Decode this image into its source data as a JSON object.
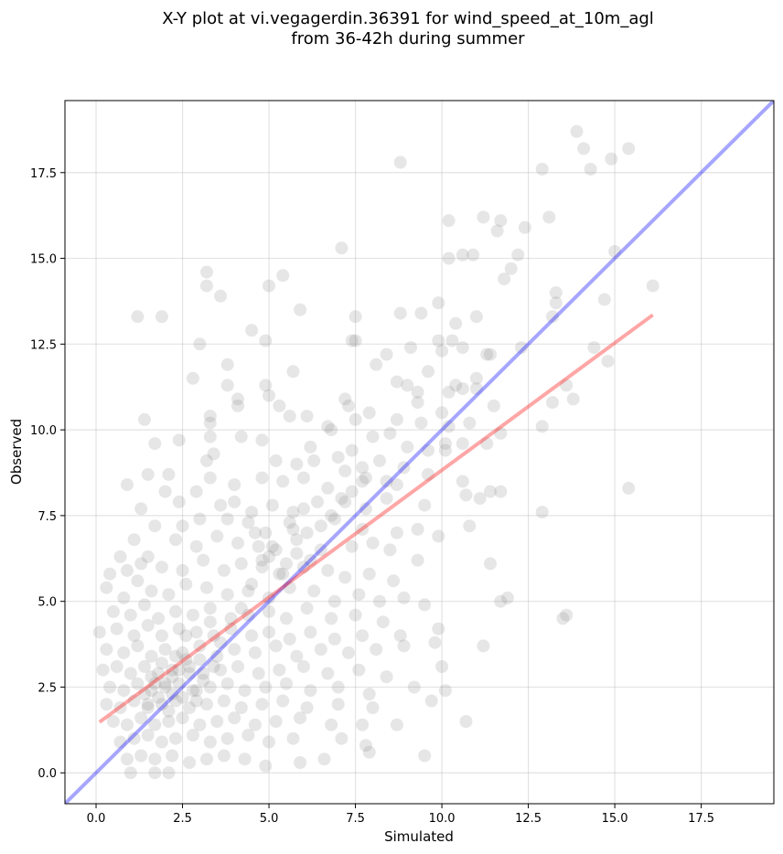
{
  "chart_data": {
    "type": "scatter",
    "title_line1": "X-Y plot at vi.vegagerdin.36391 for wind_speed_at_10m_agl",
    "title_line2": "from 36-42h during summer",
    "xlabel": "Simulated",
    "ylabel": "Observed",
    "xlim": [
      -0.9,
      19.6
    ],
    "ylim": [
      -0.9,
      19.6
    ],
    "xticks": [
      0.0,
      2.5,
      5.0,
      7.5,
      10.0,
      12.5,
      15.0,
      17.5
    ],
    "yticks": [
      0.0,
      2.5,
      5.0,
      7.5,
      10.0,
      12.5,
      15.0,
      17.5
    ],
    "xtick_labels": [
      "0.0",
      "2.5",
      "5.0",
      "7.5",
      "10.0",
      "12.5",
      "15.0",
      "17.5"
    ],
    "ytick_labels": [
      "0.0",
      "2.5",
      "5.0",
      "7.5",
      "10.0",
      "12.5",
      "15.0",
      "17.5"
    ],
    "grid": true,
    "point_color": "#808080",
    "identity_line": {
      "color": "#0000ff",
      "x": [
        -0.9,
        19.6
      ],
      "y": [
        -0.9,
        19.6
      ]
    },
    "fit_line": {
      "color": "#ff0000",
      "x": [
        0.1,
        16.1
      ],
      "y": [
        1.48,
        13.35
      ]
    },
    "points": [
      [
        13.9,
        18.7
      ],
      [
        14.1,
        18.2
      ],
      [
        15.4,
        18.2
      ],
      [
        14.9,
        17.9
      ],
      [
        12.9,
        17.6
      ],
      [
        14.3,
        17.6
      ],
      [
        8.8,
        17.8
      ],
      [
        13.1,
        16.2
      ],
      [
        12.4,
        15.9
      ],
      [
        11.7,
        16.1
      ],
      [
        11.6,
        15.8
      ],
      [
        10.2,
        16.1
      ],
      [
        11.2,
        16.2
      ],
      [
        12.2,
        15.1
      ],
      [
        10.6,
        15.1
      ],
      [
        10.9,
        15.1
      ],
      [
        7.1,
        15.3
      ],
      [
        10.2,
        15.0
      ],
      [
        12.0,
        14.7
      ],
      [
        15.0,
        15.2
      ],
      [
        11.8,
        14.4
      ],
      [
        3.2,
        14.6
      ],
      [
        5.4,
        14.5
      ],
      [
        5.0,
        14.2
      ],
      [
        3.2,
        14.2
      ],
      [
        14.7,
        13.8
      ],
      [
        16.1,
        14.2
      ],
      [
        3.6,
        13.9
      ],
      [
        13.3,
        13.7
      ],
      [
        13.3,
        14.0
      ],
      [
        1.2,
        13.3
      ],
      [
        1.9,
        13.3
      ],
      [
        5.9,
        13.5
      ],
      [
        7.5,
        13.3
      ],
      [
        9.4,
        13.4
      ],
      [
        8.8,
        13.4
      ],
      [
        9.9,
        13.7
      ],
      [
        10.4,
        13.1
      ],
      [
        11.0,
        13.3
      ],
      [
        13.2,
        13.3
      ],
      [
        4.5,
        12.9
      ],
      [
        4.9,
        12.6
      ],
      [
        7.4,
        12.6
      ],
      [
        7.5,
        12.6
      ],
      [
        3.0,
        12.5
      ],
      [
        9.1,
        12.4
      ],
      [
        9.9,
        12.6
      ],
      [
        10.3,
        12.6
      ],
      [
        10.6,
        12.4
      ],
      [
        11.3,
        12.2
      ],
      [
        11.4,
        12.2
      ],
      [
        12.3,
        12.4
      ],
      [
        14.4,
        12.4
      ],
      [
        8.4,
        12.2
      ],
      [
        10.0,
        12.3
      ],
      [
        8.1,
        11.9
      ],
      [
        3.8,
        11.9
      ],
      [
        5.7,
        11.7
      ],
      [
        9.6,
        11.7
      ],
      [
        10.4,
        11.3
      ],
      [
        10.2,
        11.1
      ],
      [
        11.0,
        11.5
      ],
      [
        13.6,
        11.3
      ],
      [
        14.8,
        12.0
      ],
      [
        2.8,
        11.5
      ],
      [
        4.9,
        11.3
      ],
      [
        3.8,
        11.3
      ],
      [
        9.3,
        11.1
      ],
      [
        9.0,
        11.3
      ],
      [
        8.7,
        11.4
      ],
      [
        5.0,
        11.0
      ],
      [
        7.2,
        10.9
      ],
      [
        7.3,
        10.7
      ],
      [
        9.3,
        10.8
      ],
      [
        10.6,
        11.2
      ],
      [
        11.0,
        11.2
      ],
      [
        11.5,
        10.7
      ],
      [
        13.2,
        10.8
      ],
      [
        13.8,
        10.9
      ],
      [
        4.1,
        10.9
      ],
      [
        4.1,
        10.7
      ],
      [
        5.3,
        10.7
      ],
      [
        6.1,
        10.4
      ],
      [
        6.7,
        10.1
      ],
      [
        7.5,
        10.3
      ],
      [
        7.9,
        10.5
      ],
      [
        1.4,
        10.3
      ],
      [
        3.3,
        10.4
      ],
      [
        3.3,
        10.2
      ],
      [
        5.6,
        10.4
      ],
      [
        6.8,
        10.0
      ],
      [
        8.7,
        10.3
      ],
      [
        9.4,
        10.2
      ],
      [
        10.8,
        10.2
      ],
      [
        11.7,
        9.9
      ],
      [
        12.9,
        10.1
      ],
      [
        10.0,
        10.5
      ],
      [
        10.2,
        10.1
      ],
      [
        3.3,
        9.8
      ],
      [
        4.8,
        9.7
      ],
      [
        8.0,
        9.8
      ],
      [
        8.5,
        9.9
      ],
      [
        10.1,
        9.6
      ],
      [
        10.6,
        9.6
      ],
      [
        11.3,
        9.6
      ],
      [
        1.7,
        9.6
      ],
      [
        2.4,
        9.7
      ],
      [
        3.4,
        9.3
      ],
      [
        4.2,
        9.8
      ],
      [
        6.2,
        9.5
      ],
      [
        7.4,
        9.4
      ],
      [
        9.0,
        9.5
      ],
      [
        9.6,
        9.4
      ],
      [
        10.1,
        9.4
      ],
      [
        3.2,
        9.1
      ],
      [
        5.2,
        9.1
      ],
      [
        5.8,
        9.0
      ],
      [
        6.3,
        9.1
      ],
      [
        7.0,
        9.2
      ],
      [
        7.7,
        8.9
      ],
      [
        8.2,
        9.1
      ],
      [
        8.9,
        8.9
      ],
      [
        0.9,
        8.4
      ],
      [
        1.5,
        8.7
      ],
      [
        2.1,
        8.7
      ],
      [
        2.9,
        8.2
      ],
      [
        3.3,
        8.6
      ],
      [
        4.0,
        8.4
      ],
      [
        4.8,
        8.6
      ],
      [
        5.4,
        8.5
      ],
      [
        6.0,
        8.6
      ],
      [
        6.7,
        8.3
      ],
      [
        7.2,
        8.8
      ],
      [
        7.8,
        8.6
      ],
      [
        8.4,
        8.5
      ],
      [
        8.7,
        8.4
      ],
      [
        9.6,
        8.7
      ],
      [
        10.6,
        8.5
      ],
      [
        11.4,
        8.2
      ],
      [
        11.7,
        8.2
      ],
      [
        10.7,
        8.1
      ],
      [
        2.0,
        8.2
      ],
      [
        2.4,
        7.9
      ],
      [
        3.6,
        7.8
      ],
      [
        4.0,
        7.9
      ],
      [
        4.5,
        7.6
      ],
      [
        5.1,
        7.8
      ],
      [
        5.7,
        7.6
      ],
      [
        6.4,
        7.9
      ],
      [
        7.2,
        7.9
      ],
      [
        7.8,
        7.7
      ],
      [
        8.4,
        8.0
      ],
      [
        9.5,
        7.8
      ],
      [
        11.1,
        8.0
      ],
      [
        12.9,
        7.6
      ],
      [
        15.4,
        8.3
      ],
      [
        1.3,
        7.7
      ],
      [
        1.7,
        7.2
      ],
      [
        2.5,
        7.2
      ],
      [
        3.0,
        7.4
      ],
      [
        3.8,
        7.4
      ],
      [
        4.4,
        7.3
      ],
      [
        4.9,
        7.0
      ],
      [
        5.6,
        7.3
      ],
      [
        6.1,
        7.0
      ],
      [
        6.9,
        7.4
      ],
      [
        7.7,
        7.1
      ],
      [
        8.7,
        7.0
      ],
      [
        9.3,
        7.1
      ],
      [
        9.9,
        6.9
      ],
      [
        10.8,
        7.2
      ],
      [
        0.7,
        6.3
      ],
      [
        1.1,
        6.8
      ],
      [
        1.5,
        6.3
      ],
      [
        2.3,
        6.8
      ],
      [
        2.9,
        6.6
      ],
      [
        3.5,
        6.9
      ],
      [
        4.1,
        6.7
      ],
      [
        4.7,
        6.6
      ],
      [
        5.2,
        6.5
      ],
      [
        5.8,
        6.8
      ],
      [
        6.5,
        6.5
      ],
      [
        7.4,
        6.6
      ],
      [
        8.0,
        6.7
      ],
      [
        8.5,
        6.5
      ],
      [
        9.3,
        6.2
      ],
      [
        11.4,
        6.1
      ],
      [
        0.4,
        5.8
      ],
      [
        0.9,
        5.9
      ],
      [
        1.3,
        6.1
      ],
      [
        1.9,
        6.0
      ],
      [
        2.5,
        5.9
      ],
      [
        3.1,
        6.2
      ],
      [
        3.7,
        5.9
      ],
      [
        4.2,
        6.1
      ],
      [
        4.8,
        6.0
      ],
      [
        5.4,
        5.8
      ],
      [
        6.0,
        6.0
      ],
      [
        6.7,
        5.9
      ],
      [
        7.2,
        5.7
      ],
      [
        7.9,
        5.8
      ],
      [
        8.6,
        5.6
      ],
      [
        0.3,
        5.4
      ],
      [
        0.8,
        5.1
      ],
      [
        1.2,
        5.6
      ],
      [
        1.6,
        5.3
      ],
      [
        2.1,
        5.2
      ],
      [
        2.6,
        5.5
      ],
      [
        3.2,
        5.4
      ],
      [
        3.8,
        5.2
      ],
      [
        4.4,
        5.3
      ],
      [
        5.0,
        5.1
      ],
      [
        5.6,
        5.4
      ],
      [
        6.3,
        5.3
      ],
      [
        6.9,
        5.0
      ],
      [
        7.6,
        5.2
      ],
      [
        8.2,
        5.0
      ],
      [
        8.9,
        5.1
      ],
      [
        9.5,
        4.9
      ],
      [
        11.9,
        5.1
      ],
      [
        11.7,
        5.0
      ],
      [
        0.5,
        4.7
      ],
      [
        1.0,
        4.6
      ],
      [
        1.4,
        4.9
      ],
      [
        1.8,
        4.5
      ],
      [
        2.3,
        4.7
      ],
      [
        2.8,
        4.6
      ],
      [
        3.3,
        4.8
      ],
      [
        3.9,
        4.5
      ],
      [
        4.4,
        4.6
      ],
      [
        5.0,
        4.7
      ],
      [
        5.5,
        4.5
      ],
      [
        6.1,
        4.8
      ],
      [
        6.8,
        4.5
      ],
      [
        7.5,
        4.6
      ],
      [
        8.3,
        4.4
      ],
      [
        13.5,
        4.5
      ],
      [
        13.6,
        4.6
      ],
      [
        0.1,
        4.1
      ],
      [
        0.6,
        4.2
      ],
      [
        1.1,
        4.0
      ],
      [
        1.5,
        4.3
      ],
      [
        1.9,
        4.0
      ],
      [
        2.4,
        4.2
      ],
      [
        2.9,
        4.1
      ],
      [
        3.4,
        4.0
      ],
      [
        3.9,
        4.2
      ],
      [
        4.5,
        4.0
      ],
      [
        5.0,
        4.1
      ],
      [
        5.6,
        3.9
      ],
      [
        6.2,
        4.1
      ],
      [
        6.9,
        3.9
      ],
      [
        7.7,
        4.0
      ],
      [
        8.8,
        4.0
      ],
      [
        9.9,
        4.2
      ],
      [
        0.3,
        3.6
      ],
      [
        0.8,
        3.5
      ],
      [
        1.2,
        3.7
      ],
      [
        1.6,
        3.4
      ],
      [
        2.0,
        3.6
      ],
      [
        2.5,
        3.5
      ],
      [
        3.0,
        3.7
      ],
      [
        3.5,
        3.4
      ],
      [
        4.0,
        3.6
      ],
      [
        4.6,
        3.5
      ],
      [
        5.2,
        3.7
      ],
      [
        5.8,
        3.4
      ],
      [
        6.5,
        3.6
      ],
      [
        7.3,
        3.5
      ],
      [
        8.1,
        3.6
      ],
      [
        8.9,
        3.7
      ],
      [
        9.8,
        3.8
      ],
      [
        11.2,
        3.7
      ],
      [
        0.2,
        3.0
      ],
      [
        0.6,
        3.1
      ],
      [
        1.0,
        2.9
      ],
      [
        1.4,
        3.1
      ],
      [
        1.8,
        2.9
      ],
      [
        2.2,
        3.0
      ],
      [
        2.7,
        3.1
      ],
      [
        3.1,
        2.9
      ],
      [
        3.6,
        3.0
      ],
      [
        4.1,
        3.1
      ],
      [
        4.7,
        2.9
      ],
      [
        5.3,
        3.0
      ],
      [
        6.0,
        3.1
      ],
      [
        6.7,
        2.9
      ],
      [
        7.6,
        3.0
      ],
      [
        8.4,
        2.8
      ],
      [
        10.0,
        3.1
      ],
      [
        0.4,
        2.5
      ],
      [
        0.8,
        2.4
      ],
      [
        1.2,
        2.6
      ],
      [
        1.6,
        2.4
      ],
      [
        2.0,
        2.5
      ],
      [
        2.4,
        2.6
      ],
      [
        2.9,
        2.4
      ],
      [
        3.3,
        2.5
      ],
      [
        3.8,
        2.6
      ],
      [
        4.3,
        2.4
      ],
      [
        4.9,
        2.5
      ],
      [
        5.5,
        2.6
      ],
      [
        6.2,
        2.4
      ],
      [
        7.0,
        2.5
      ],
      [
        7.9,
        2.3
      ],
      [
        9.2,
        2.5
      ],
      [
        10.1,
        2.4
      ],
      [
        0.3,
        2.0
      ],
      [
        0.7,
        1.9
      ],
      [
        1.1,
        2.1
      ],
      [
        1.5,
        1.9
      ],
      [
        1.9,
        2.0
      ],
      [
        2.3,
        2.1
      ],
      [
        2.7,
        1.9
      ],
      [
        3.2,
        2.0
      ],
      [
        3.7,
        2.1
      ],
      [
        4.2,
        1.9
      ],
      [
        4.8,
        2.0
      ],
      [
        5.4,
        2.1
      ],
      [
        6.1,
        1.9
      ],
      [
        7.0,
        2.0
      ],
      [
        8.0,
        1.9
      ],
      [
        9.7,
        2.1
      ],
      [
        0.5,
        1.5
      ],
      [
        0.9,
        1.4
      ],
      [
        1.3,
        1.6
      ],
      [
        1.7,
        1.4
      ],
      [
        2.1,
        1.5
      ],
      [
        2.5,
        1.6
      ],
      [
        3.0,
        1.4
      ],
      [
        3.5,
        1.5
      ],
      [
        4.0,
        1.6
      ],
      [
        4.6,
        1.4
      ],
      [
        5.2,
        1.5
      ],
      [
        5.9,
        1.6
      ],
      [
        6.8,
        1.4
      ],
      [
        7.7,
        1.4
      ],
      [
        8.7,
        1.4
      ],
      [
        10.7,
        1.5
      ],
      [
        0.7,
        0.9
      ],
      [
        1.1,
        1.0
      ],
      [
        1.5,
        1.1
      ],
      [
        1.9,
        0.9
      ],
      [
        2.3,
        1.0
      ],
      [
        2.8,
        1.1
      ],
      [
        3.3,
        0.9
      ],
      [
        3.8,
        1.0
      ],
      [
        4.4,
        1.1
      ],
      [
        5.0,
        0.9
      ],
      [
        5.7,
        1.0
      ],
      [
        7.1,
        1.0
      ],
      [
        7.8,
        0.8
      ],
      [
        0.9,
        0.4
      ],
      [
        1.3,
        0.5
      ],
      [
        1.7,
        0.4
      ],
      [
        2.2,
        0.5
      ],
      [
        2.7,
        0.3
      ],
      [
        3.2,
        0.4
      ],
      [
        3.7,
        0.5
      ],
      [
        4.3,
        0.4
      ],
      [
        4.9,
        0.2
      ],
      [
        5.9,
        0.3
      ],
      [
        6.6,
        0.4
      ],
      [
        9.5,
        0.5
      ],
      [
        7.9,
        0.6
      ],
      [
        1.0,
        0.0
      ],
      [
        1.7,
        0.0
      ],
      [
        2.1,
        0.0
      ],
      [
        1.8,
        2.2
      ],
      [
        2.2,
        2.8
      ],
      [
        2.6,
        3.3
      ],
      [
        1.4,
        2.3
      ],
      [
        2.0,
        2.6
      ],
      [
        2.4,
        3.0
      ],
      [
        1.6,
        2.8
      ],
      [
        2.8,
        2.4
      ],
      [
        3.0,
        3.3
      ],
      [
        2.1,
        1.8
      ],
      [
        1.9,
        3.2
      ],
      [
        2.5,
        2.2
      ],
      [
        3.1,
        2.7
      ],
      [
        1.7,
        2.6
      ],
      [
        2.3,
        3.4
      ],
      [
        2.7,
        2.9
      ],
      [
        3.4,
        3.1
      ],
      [
        2.9,
        2.1
      ],
      [
        1.5,
        2.0
      ],
      [
        2.2,
        2.3
      ],
      [
        2.6,
        4.0
      ],
      [
        3.3,
        4.4
      ],
      [
        3.6,
        3.8
      ],
      [
        4.2,
        4.8
      ],
      [
        4.5,
        5.5
      ],
      [
        4.8,
        6.2
      ],
      [
        5.3,
        5.8
      ],
      [
        5.1,
        6.6
      ],
      [
        4.6,
        7.0
      ],
      [
        5.5,
        6.1
      ],
      [
        5.8,
        6.4
      ],
      [
        6.2,
        6.2
      ],
      [
        6.5,
        7.2
      ],
      [
        6.8,
        7.5
      ],
      [
        7.1,
        8.0
      ],
      [
        7.4,
        8.2
      ],
      [
        7.7,
        8.5
      ],
      [
        6.0,
        7.7
      ],
      [
        5.7,
        7.1
      ],
      [
        5.0,
        6.3
      ]
    ]
  }
}
